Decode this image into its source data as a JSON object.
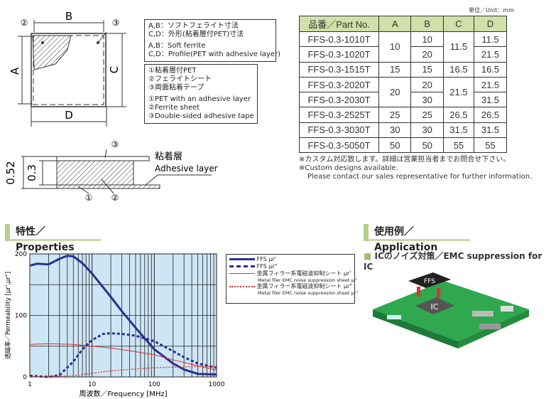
{
  "diagram": {
    "labels": {
      "a": "A",
      "b": "B",
      "c": "C",
      "d": "D",
      "n2": "②",
      "n3": "③"
    },
    "dim_box": [
      "A,B：ソフトフェライト寸法",
      "C,D：外形(粘着層付PET)寸法",
      "A,B：Soft ferrite",
      "C,D：Profile(PET with adhesive layer)"
    ],
    "layer_box_jp": [
      "①粘着層付PET",
      "②フェライトシート",
      "③両面粘着テープ"
    ],
    "layer_box_en": [
      "①PET with an adhesive layer",
      "②Ferrite sheet",
      "③Double-sided adhesive tape"
    ],
    "cross_section": {
      "total": "0.52",
      "ferrite": "0.3",
      "adhesive_jp": "粘着層",
      "adhesive_en": "Adhesive layer",
      "n1": "①",
      "n2": "②",
      "n3": "③"
    }
  },
  "table": {
    "unit": "単位／Unit：mm",
    "headers": [
      "品番／Part No.",
      "A",
      "B",
      "C",
      "D"
    ],
    "parts": [
      "FFS-0.3-1010T",
      "FFS-0.3-1020T",
      "FFS-0.3-1515T",
      "FFS-0.3-2020T",
      "FFS-0.3-2030T",
      "FFS-0.3-2525T",
      "FFS-0.3-3030T",
      "FFS-0.3-5050T"
    ],
    "A": [
      "10",
      "15",
      "20",
      "25",
      "30",
      "50"
    ],
    "B": [
      "10",
      "20",
      "15",
      "20",
      "30",
      "25",
      "30",
      "50"
    ],
    "C": [
      "11.5",
      "16.5",
      "21.5",
      "26.5",
      "31.5",
      "55"
    ],
    "D": [
      "11.5",
      "21.5",
      "16.5",
      "21.5",
      "31.5",
      "26.5",
      "31.5",
      "55"
    ],
    "notes": [
      "※カスタム対応致します。詳細は営業担当者までお問合せ下さい。",
      "※Custom designs available.",
      "Please contact our sales representative for further information."
    ]
  },
  "properties": {
    "heading": "特性／Properties"
  },
  "application": {
    "heading": "使用例／Application",
    "subheading": "ICのノイズ対策／EMC suppression for IC",
    "ffs_label": "FFS",
    "ic_label": "IC",
    "board_color": "#2fa84f"
  },
  "chart_data": {
    "type": "line",
    "xlabel": "周波数／Frequency [MHz]",
    "ylabel": "透磁率／Permeability [μr',μr\"]",
    "xscale": "log",
    "xlim": [
      1,
      1000
    ],
    "ylim": [
      0,
      200
    ],
    "xticks": [
      "1",
      "10",
      "100",
      "1000"
    ],
    "yticks": [
      "0",
      "100",
      "200"
    ],
    "grid": true,
    "background": "#cde6f5",
    "legend_placement": "right",
    "series": [
      {
        "name": "FFS μr'",
        "style": "solid-thick",
        "color": "#2b2f8f",
        "x": [
          1,
          1.3,
          2,
          3,
          4,
          5,
          7,
          10,
          20,
          30,
          50,
          100,
          200,
          300,
          500,
          1000
        ],
        "y": [
          181,
          184,
          183,
          192,
          197,
          196,
          185,
          168,
          130,
          107,
          80,
          45,
          22,
          12,
          5,
          4
        ]
      },
      {
        "name": "FFS μr\"",
        "style": "dashed-thick",
        "color": "#2b2f8f",
        "x": [
          1,
          2,
          3,
          5,
          7,
          10,
          15,
          20,
          30,
          50,
          100,
          200,
          300,
          500,
          1000
        ],
        "y": [
          2,
          0,
          3,
          25,
          45,
          60,
          70,
          71,
          70,
          67,
          58,
          42,
          32,
          22,
          15
        ]
      },
      {
        "name": "金属フィラー系電磁波抑制シート μr'",
        "name_en": "Metal filer EMC noise suppression sheet μr'",
        "style": "solid-thin",
        "color": "#d9302a",
        "x": [
          1,
          2,
          5,
          10,
          20,
          50,
          100,
          200,
          500,
          1000
        ],
        "y": [
          53,
          54,
          53,
          50,
          47,
          41,
          36,
          28,
          18,
          11
        ]
      },
      {
        "name": "金属フィラー系電磁波抑制シート μr\"",
        "name_en": "Metal filer EMC noise suppression sheet μr\"",
        "style": "dotted",
        "color": "#d9302a",
        "x": [
          1,
          5,
          10,
          20,
          50,
          100,
          200,
          500,
          1000
        ],
        "y": [
          0,
          2,
          6,
          10,
          13,
          15,
          16,
          17,
          17
        ]
      }
    ]
  }
}
